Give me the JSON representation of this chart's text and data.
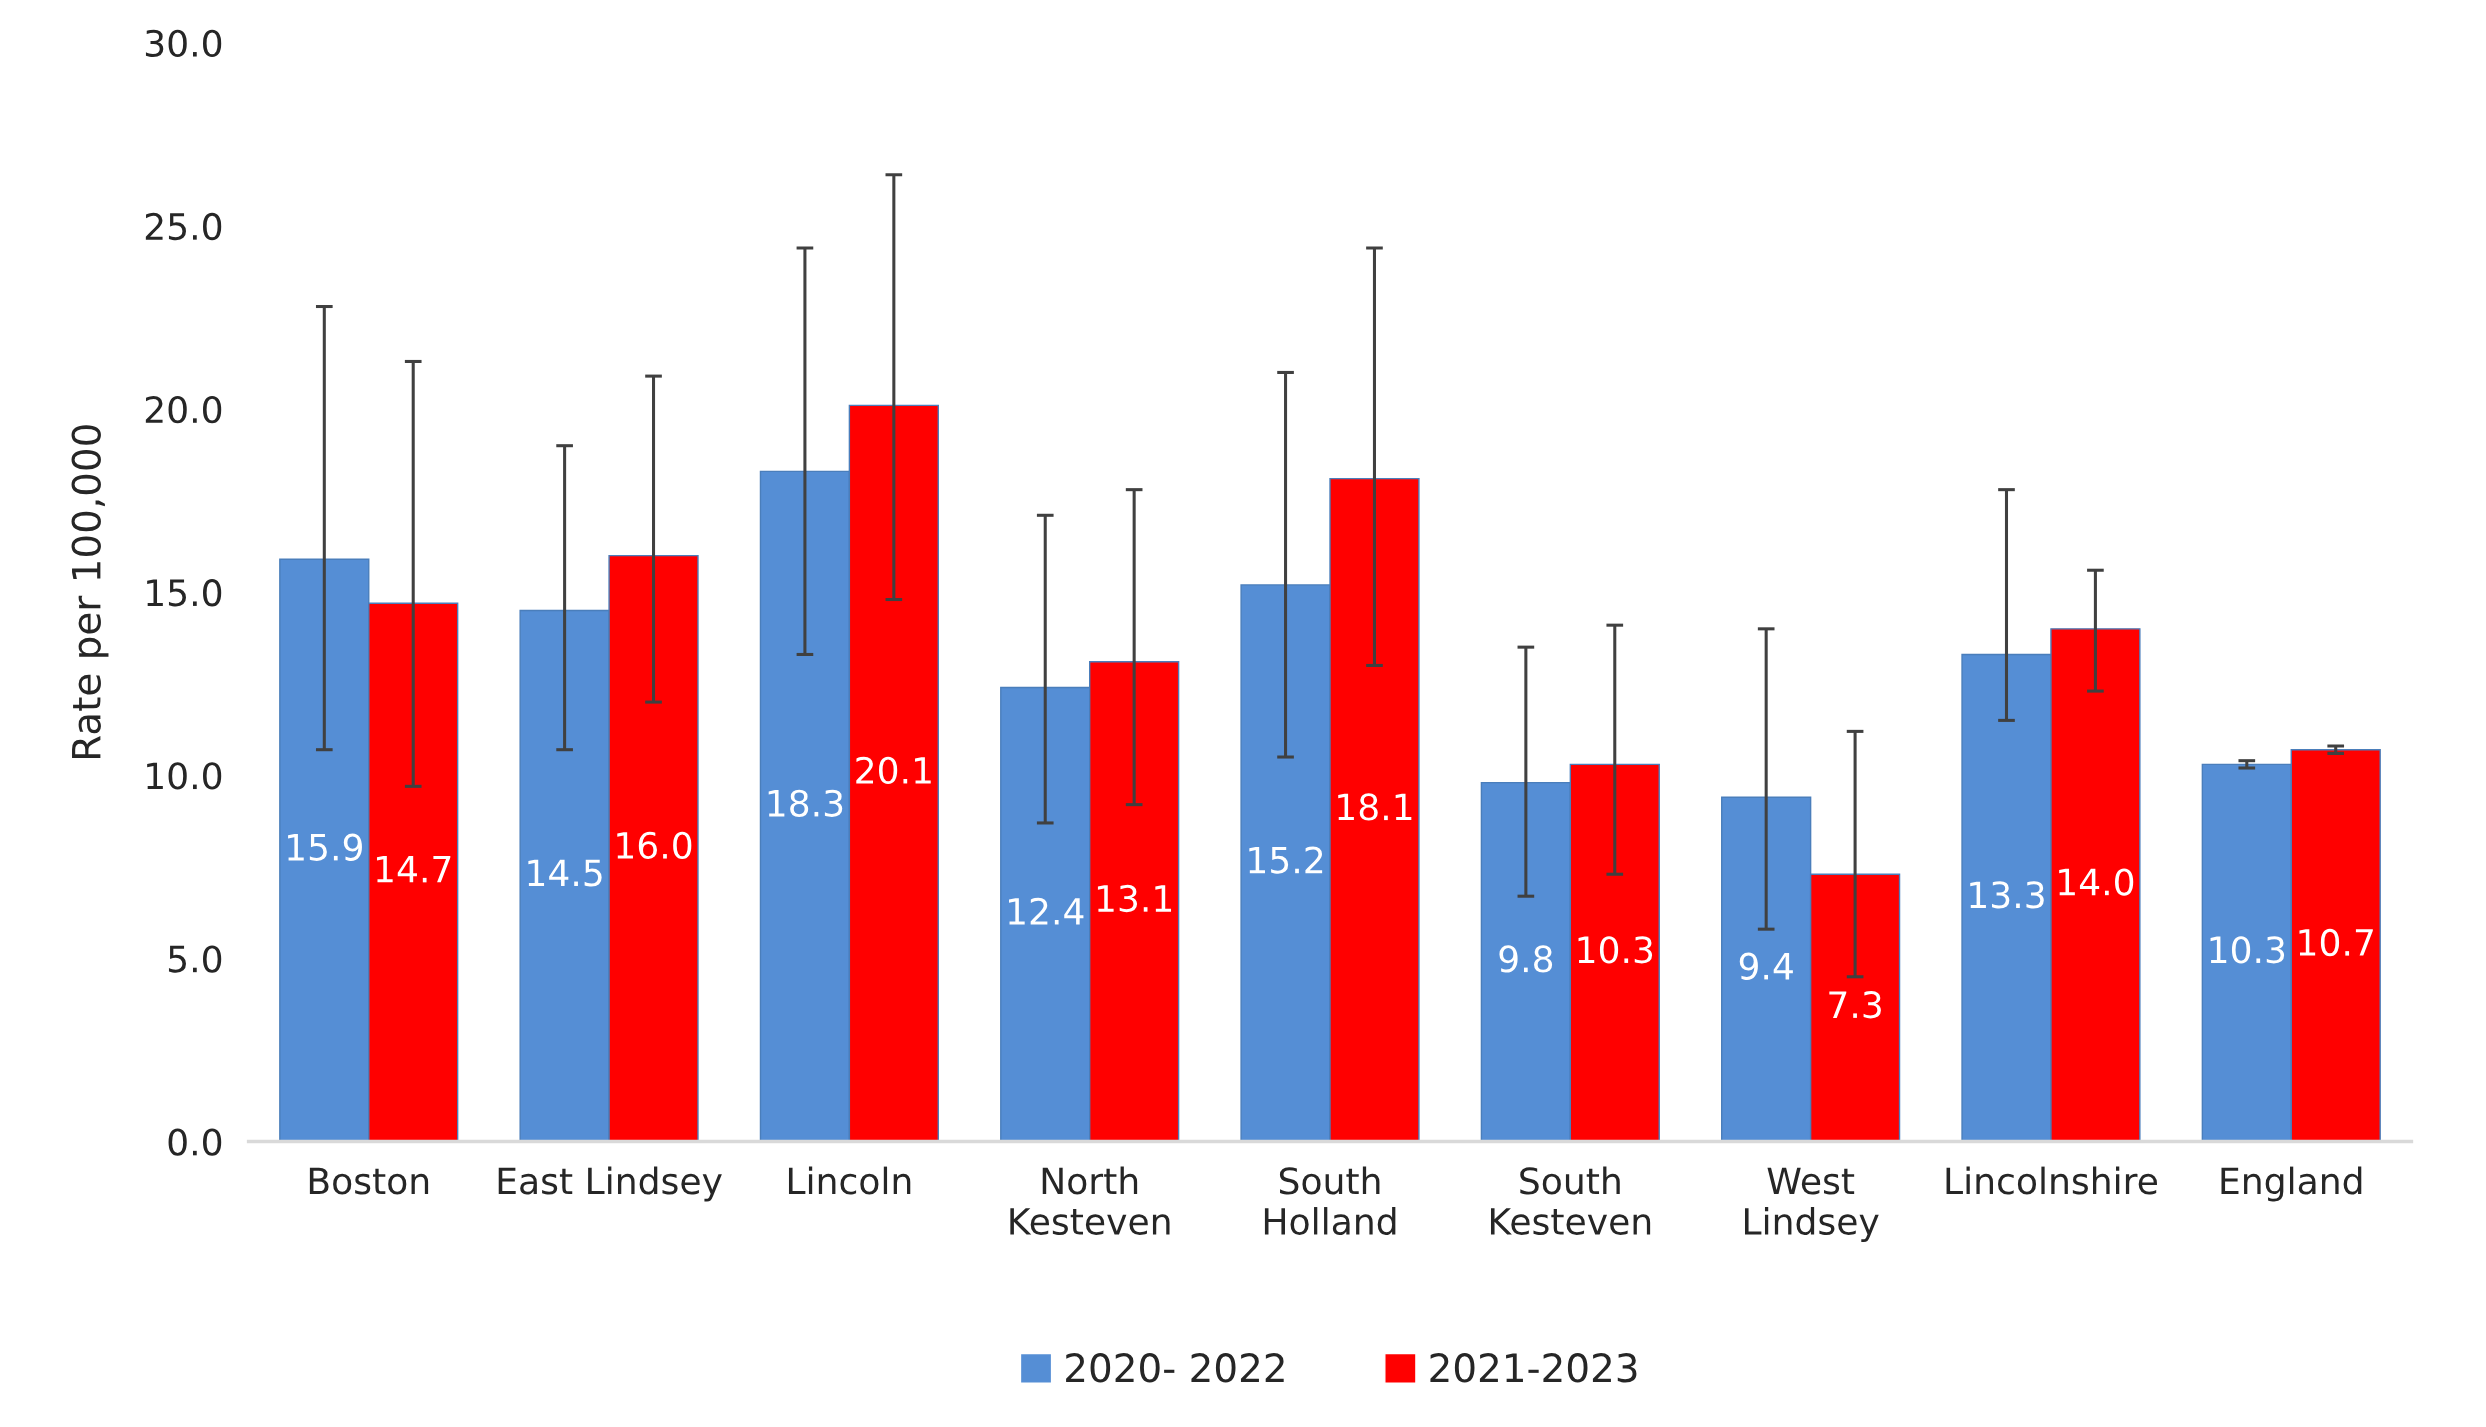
{
  "chart_data": {
    "type": "bar",
    "ylabel": "Rate per 100,000",
    "categories": [
      "Boston",
      "East Lindsey",
      "Lincoln",
      "North\nKesteven",
      "South\nHolland",
      "South\nKesteven",
      "West\nLindsey",
      "Lincolnshire",
      "England"
    ],
    "series": [
      {
        "name": "2020- 2022",
        "color": "#558ed5",
        "values": [
          15.9,
          14.5,
          18.3,
          12.4,
          15.2,
          9.8,
          9.4,
          13.3,
          10.3
        ],
        "value_labels": [
          "15.9",
          "14.5",
          "18.3",
          "12.4",
          "15.2",
          "9.8",
          "9.4",
          "13.3",
          "10.3"
        ],
        "errors": [
          [
            10.7,
            22.8
          ],
          [
            10.7,
            19.0
          ],
          [
            13.3,
            24.4
          ],
          [
            8.7,
            17.1
          ],
          [
            10.5,
            21.0
          ],
          [
            6.7,
            13.5
          ],
          [
            5.8,
            14.0
          ],
          [
            11.5,
            17.8
          ],
          [
            10.2,
            10.4
          ]
        ]
      },
      {
        "name": "2021-2023",
        "color": "#ff0000",
        "values": [
          14.7,
          16.0,
          20.1,
          13.1,
          18.1,
          10.3,
          7.3,
          14.0,
          10.7
        ],
        "value_labels": [
          "14.7",
          "16.0",
          "20.1",
          "13.1",
          "18.1",
          "10.3",
          "7.3",
          "14.0",
          "10.7"
        ],
        "errors": [
          [
            9.7,
            21.3
          ],
          [
            12.0,
            20.9
          ],
          [
            14.8,
            26.4
          ],
          [
            9.2,
            17.8
          ],
          [
            13.0,
            24.4
          ],
          [
            7.3,
            14.1
          ],
          [
            4.5,
            11.2
          ],
          [
            12.3,
            15.6
          ],
          [
            10.6,
            10.8
          ]
        ]
      }
    ],
    "ylim": [
      0,
      30
    ],
    "yticks": [
      {
        "value": 0,
        "label": "0.0"
      },
      {
        "value": 5,
        "label": "5.0"
      },
      {
        "value": 10,
        "label": "10.0"
      },
      {
        "value": 15,
        "label": "15.0"
      },
      {
        "value": 20,
        "label": "20.0"
      },
      {
        "value": 25,
        "label": "25.0"
      },
      {
        "value": 30,
        "label": "30.0"
      }
    ],
    "grid": false,
    "legend": "bottom"
  }
}
